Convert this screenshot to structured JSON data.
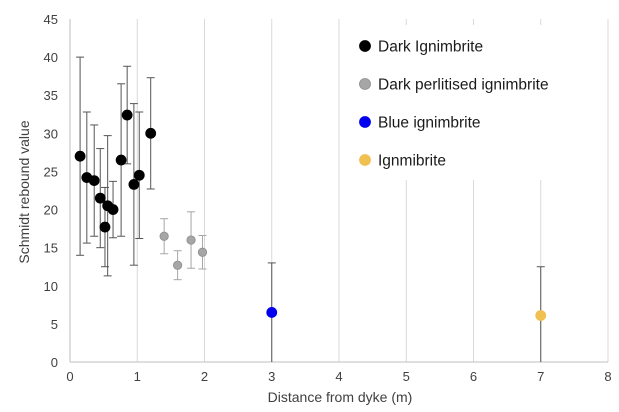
{
  "chart_data": {
    "type": "scatter",
    "xlabel": "Distance from dyke (m)",
    "ylabel": "Schmidt rebound value",
    "xlim": [
      0,
      8
    ],
    "ylim": [
      0,
      45
    ],
    "xticks": [
      0,
      1,
      2,
      3,
      4,
      5,
      6,
      7,
      8
    ],
    "yticks": [
      0,
      5,
      10,
      15,
      20,
      25,
      30,
      35,
      40,
      45
    ],
    "grid": "vertical",
    "legend_position": "top-right",
    "series": [
      {
        "name": "Dark Ignimbrite",
        "color": "#000000",
        "points": [
          {
            "x": 0.15,
            "y": 27.0,
            "err": 13.0
          },
          {
            "x": 0.25,
            "y": 24.2,
            "err": 8.6
          },
          {
            "x": 0.36,
            "y": 23.8,
            "err": 7.3
          },
          {
            "x": 0.45,
            "y": 21.5,
            "err": 6.5
          },
          {
            "x": 0.52,
            "y": 17.7,
            "err": 5.2
          },
          {
            "x": 0.56,
            "y": 20.5,
            "err": 9.2
          },
          {
            "x": 0.64,
            "y": 20.0,
            "err": 3.7
          },
          {
            "x": 0.76,
            "y": 26.5,
            "err": 10.0
          },
          {
            "x": 0.85,
            "y": 32.4,
            "err": 6.4
          },
          {
            "x": 0.95,
            "y": 23.3,
            "err": 10.6
          },
          {
            "x": 1.03,
            "y": 24.5,
            "err": 8.3
          },
          {
            "x": 1.2,
            "y": 30.0,
            "err": 7.3
          }
        ]
      },
      {
        "name": "Dark perlitised ignimbrite",
        "color": "#a6a6a6",
        "points": [
          {
            "x": 1.4,
            "y": 16.5,
            "err": 2.3
          },
          {
            "x": 1.6,
            "y": 12.7,
            "err": 1.9
          },
          {
            "x": 1.8,
            "y": 16.0,
            "err": 3.7
          },
          {
            "x": 1.97,
            "y": 14.4,
            "err": 2.2
          }
        ]
      },
      {
        "name": "Blue ignimbrite",
        "color": "#0000ee",
        "points": [
          {
            "x": 3.0,
            "y": 6.5,
            "err": 6.5
          }
        ]
      },
      {
        "name": "Ignmibrite",
        "color": "#f0c050",
        "points": [
          {
            "x": 7.0,
            "y": 6.1,
            "err": 6.4
          }
        ]
      }
    ]
  }
}
